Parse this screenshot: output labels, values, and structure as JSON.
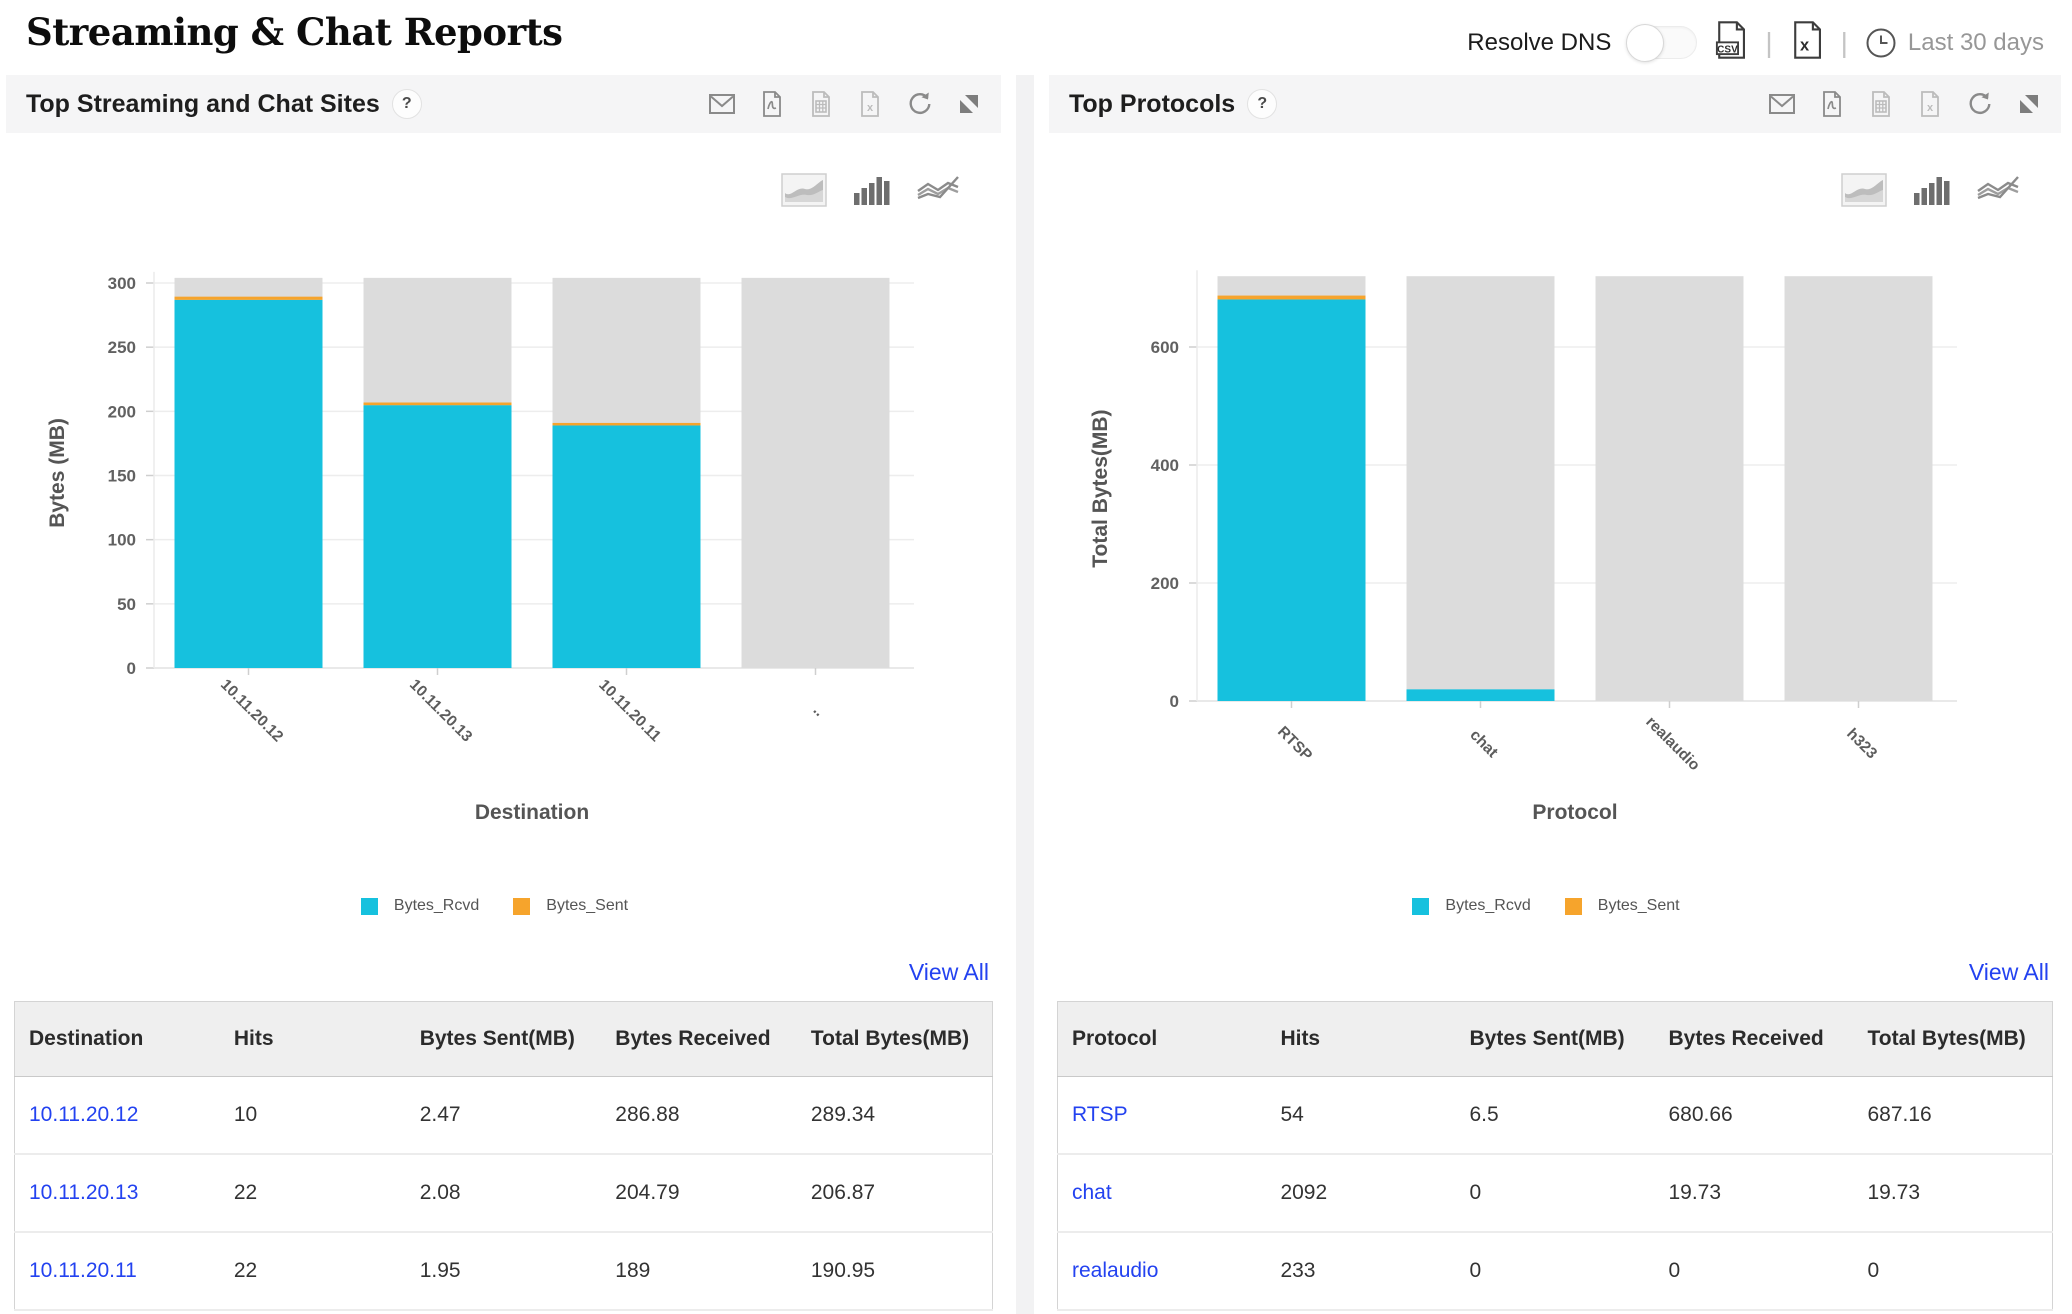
{
  "page": {
    "title": "Streaming & Chat Reports"
  },
  "topbar": {
    "resolve_dns_label": "Resolve DNS",
    "toggle_state": "off",
    "separator": "|",
    "export_icons": [
      "csv-export-icon",
      "excel-export-icon"
    ],
    "time_range": {
      "icon": "clock-icon",
      "label": "Last 30 days"
    }
  },
  "panels": [
    {
      "title": "Top Streaming and Chat Sites",
      "help_badge": "?",
      "header_icons": [
        "email-icon",
        "pdf-export-icon",
        "spreadsheet-export-icon",
        "excel-export-icon",
        "refresh-icon",
        "detach-icon"
      ],
      "chart_type_icons": [
        "area-chart-icon",
        "bar-chart-icon",
        "line-chart-icon"
      ],
      "view_all_label": "View All",
      "table": {
        "headers": [
          "Destination",
          "Hits",
          "Bytes Sent(MB)",
          "Bytes Received",
          "Total Bytes(MB)"
        ],
        "rows": [
          [
            "10.11.20.12",
            "10",
            "2.47",
            "286.88",
            "289.34"
          ],
          [
            "10.11.20.13",
            "22",
            "2.08",
            "204.79",
            "206.87"
          ],
          [
            "10.11.20.11",
            "22",
            "1.95",
            "189",
            "190.95"
          ]
        ]
      }
    },
    {
      "title": "Top Protocols",
      "help_badge": "?",
      "header_icons": [
        "email-icon",
        "pdf-export-icon",
        "spreadsheet-export-icon",
        "excel-export-icon",
        "refresh-icon",
        "detach-icon"
      ],
      "chart_type_icons": [
        "area-chart-icon",
        "bar-chart-icon",
        "line-chart-icon"
      ],
      "view_all_label": "View All",
      "table": {
        "headers": [
          "Protocol",
          "Hits",
          "Bytes Sent(MB)",
          "Bytes Received",
          "Total Bytes(MB)"
        ],
        "rows": [
          [
            "RTSP",
            "54",
            "6.5",
            "680.66",
            "687.16"
          ],
          [
            "chat",
            "2092",
            "0",
            "19.73",
            "19.73"
          ],
          [
            "realaudio",
            "233",
            "0",
            "0",
            "0"
          ]
        ]
      }
    }
  ],
  "chart_data": [
    {
      "type": "bar",
      "stacked": true,
      "categories": [
        "10.11.20.12",
        "10.11.20.13",
        "10.11.20.11",
        ".."
      ],
      "series": [
        {
          "name": "Bytes_Rcvd",
          "color": "#16c1de",
          "values": [
            286.88,
            204.79,
            189,
            0
          ]
        },
        {
          "name": "Bytes_Sent",
          "color": "#f6a42c",
          "values": [
            2.47,
            2.08,
            1.95,
            0
          ]
        }
      ],
      "background_track": {
        "color": "#dcdcdc",
        "max": 304
      },
      "xlabel": "Destination",
      "ylabel": "Bytes (MB)",
      "ylim": [
        0,
        304
      ],
      "yticks": [
        0,
        50,
        100,
        150,
        200,
        250,
        300
      ],
      "grid": true,
      "legend_position": "bottom"
    },
    {
      "type": "bar",
      "stacked": true,
      "categories": [
        "RTSP",
        "chat",
        "realaudio",
        "h323"
      ],
      "series": [
        {
          "name": "Bytes_Rcvd",
          "color": "#16c1de",
          "values": [
            680.66,
            19.73,
            0,
            0
          ]
        },
        {
          "name": "Bytes_Sent",
          "color": "#f6a42c",
          "values": [
            6.5,
            0,
            0,
            0
          ]
        }
      ],
      "background_track": {
        "color": "#dcdcdc",
        "max": 720
      },
      "xlabel": "Protocol",
      "ylabel": "Total Bytes(MB)",
      "ylim": [
        0,
        720
      ],
      "yticks": [
        0,
        200,
        400,
        600
      ],
      "grid": true,
      "legend_position": "bottom"
    }
  ]
}
